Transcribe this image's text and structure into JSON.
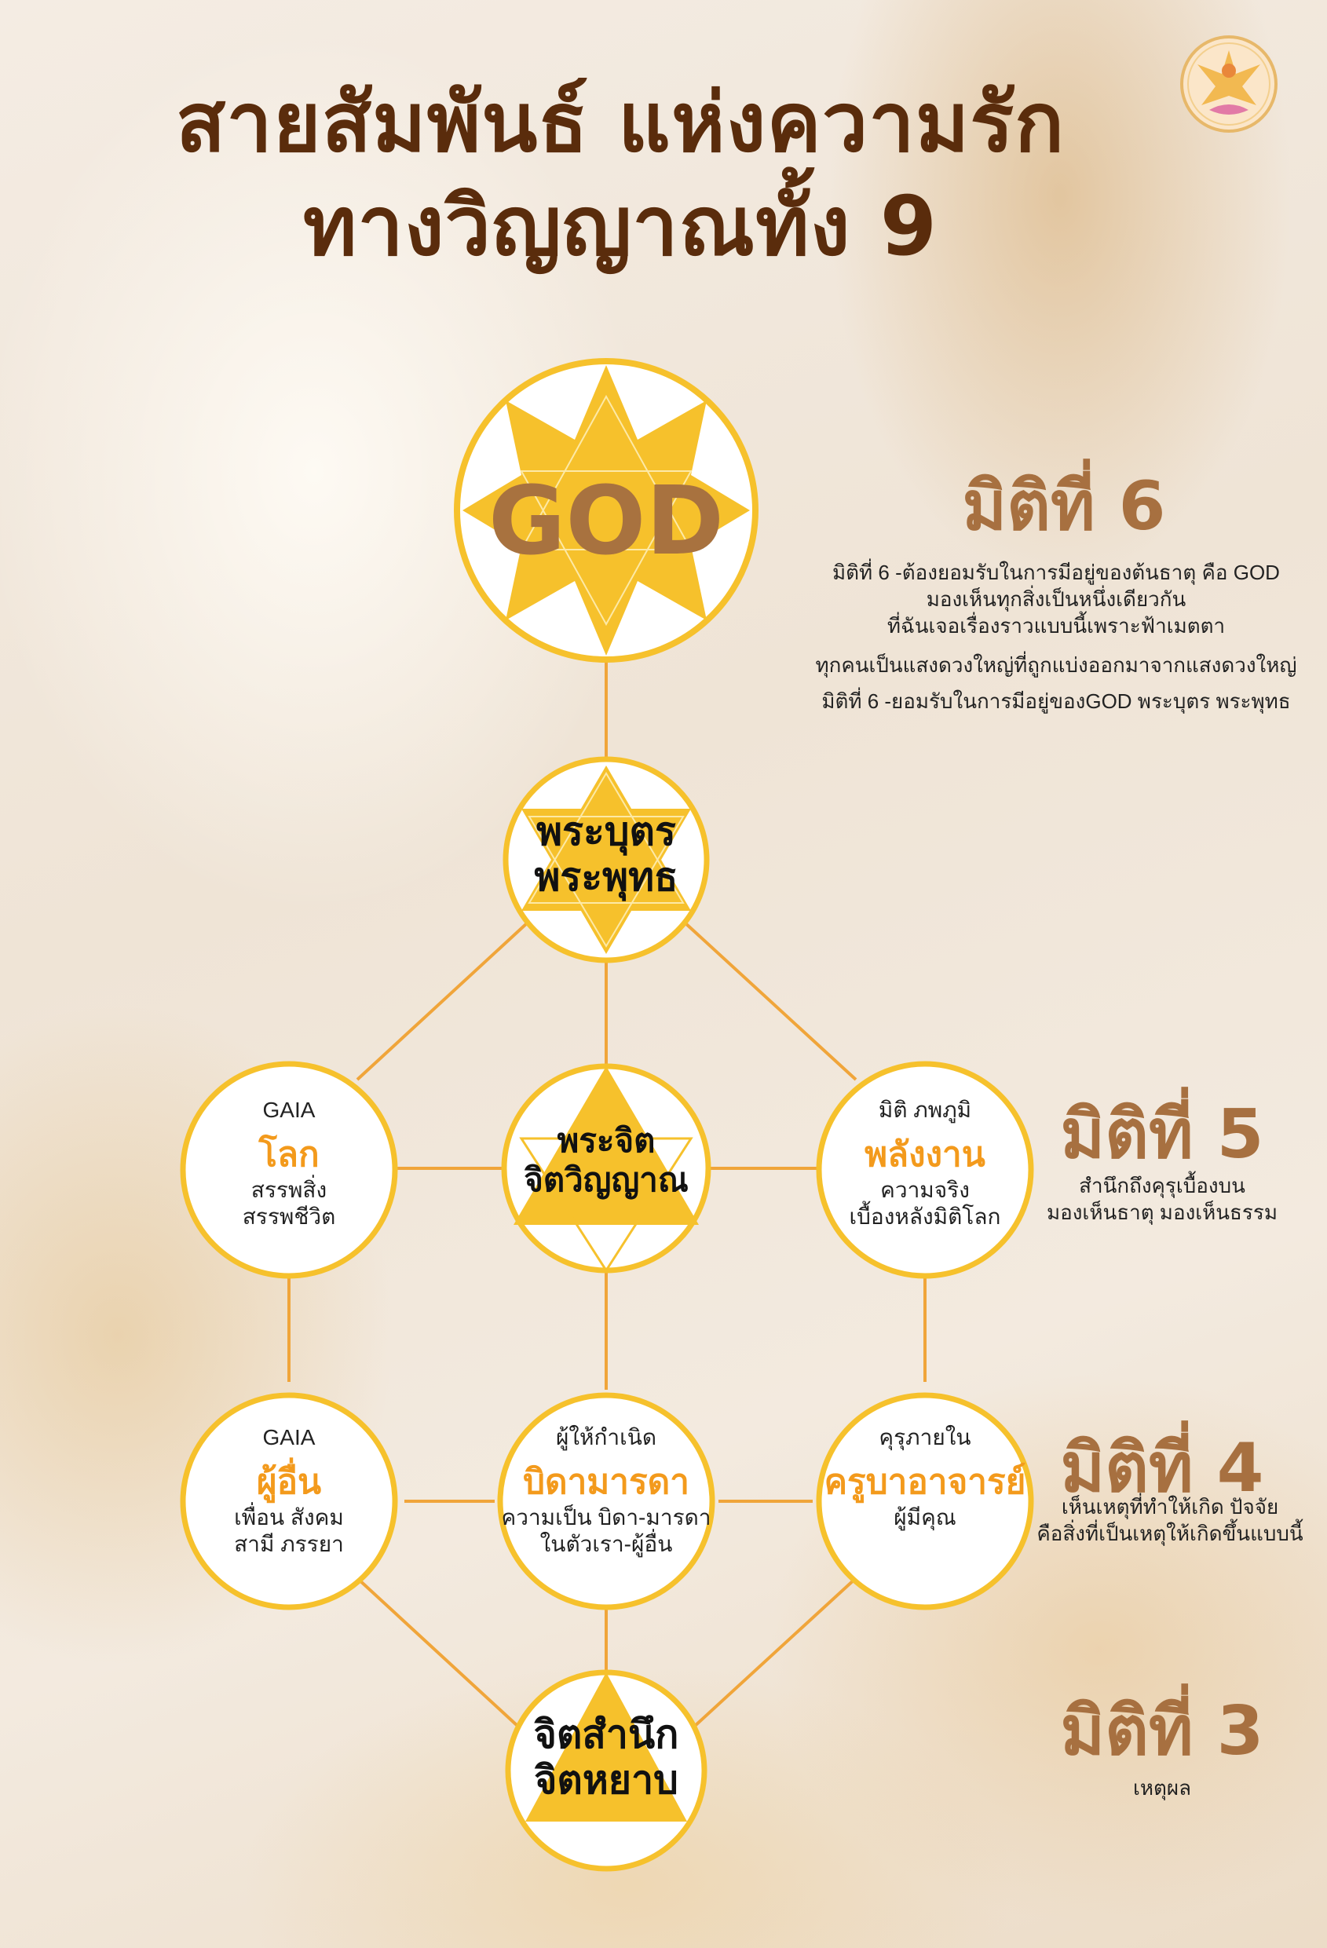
{
  "title": {
    "line1": "สายสัมพันธ์ แห่งความรัก",
    "line2": "ทางวิญญาณทั้ง 9"
  },
  "nodes": {
    "god": {
      "label": "GOD"
    },
    "son_buddha": {
      "line1": "พระบุตร",
      "line2": "พระพุทธ"
    },
    "holy_mind": {
      "line1": "พระจิต",
      "line2": "จิตวิญญาณ"
    },
    "earth": {
      "top": "GAIA",
      "main": "โลก",
      "sub1": "สรรพสิ่ง",
      "sub2": "สรรพชีวิต"
    },
    "energy": {
      "top": "มิติ ภพภูมิ",
      "main": "พลังงาน",
      "sub1": "ความจริง",
      "sub2": "เบื้องหลังมิติโลก"
    },
    "others": {
      "top": "GAIA",
      "main": "ผู้อื่น",
      "sub1": "เพื่อน สังคม",
      "sub2": "สามี ภรรยา"
    },
    "parents": {
      "top": "ผู้ให้กำเนิด",
      "main": "บิดามารดา",
      "sub1": "ความเป็น บิดา-มารดา",
      "sub2": "ในตัวเรา-ผู้อื่น"
    },
    "teachers": {
      "top": "คุรุภายใน",
      "main": "ครูบาอาจารย์",
      "sub1": "ผู้มีคุณ"
    },
    "conscience": {
      "line1": "จิตสำนึก",
      "line2": "จิตหยาบ"
    }
  },
  "dimensions": {
    "d6": {
      "title": "มิติที่ 6",
      "lines": [
        "มิติที่ 6 -ต้องยอมรับในการมีอยู่ของต้นธาตุ คือ GOD",
        "มองเห็นทุกสิ่งเป็นหนึ่งเดียวกัน",
        "ที่ฉันเจอเรื่องราวแบบนี้เพราะฟ้าเมตตา",
        "ทุกคนเป็นแสงดวงใหญ่ที่ถูกแบ่งออกมาจากแสงดวงใหญ่",
        "มิติที่ 6 -ยอมรับในการมีอยู่ของGOD พระบุตร พระพุทธ"
      ]
    },
    "d5": {
      "title": "มิติที่ 5",
      "lines": [
        "สำนึกถึงคุรุเบื้องบน",
        "มองเห็นธาตุ มองเห็นธรรม"
      ]
    },
    "d4": {
      "title": "มิติที่ 4",
      "lines": [
        "เห็นเหตุที่ทำให้เกิด ปัจจัย",
        "คือสิ่งที่เป็นเหตุให้เกิดขึ้นแบบนี้"
      ]
    },
    "d3": {
      "title": "มิติที่ 3",
      "lines": [
        "เหตุผล"
      ]
    }
  },
  "colors": {
    "line": "#f0a53a",
    "star": "#f6c12c",
    "circle_border": "#f6c12c",
    "title": "#5a2c0c",
    "dimension_title": "#a77040",
    "accent_text": "#f39a1c"
  }
}
